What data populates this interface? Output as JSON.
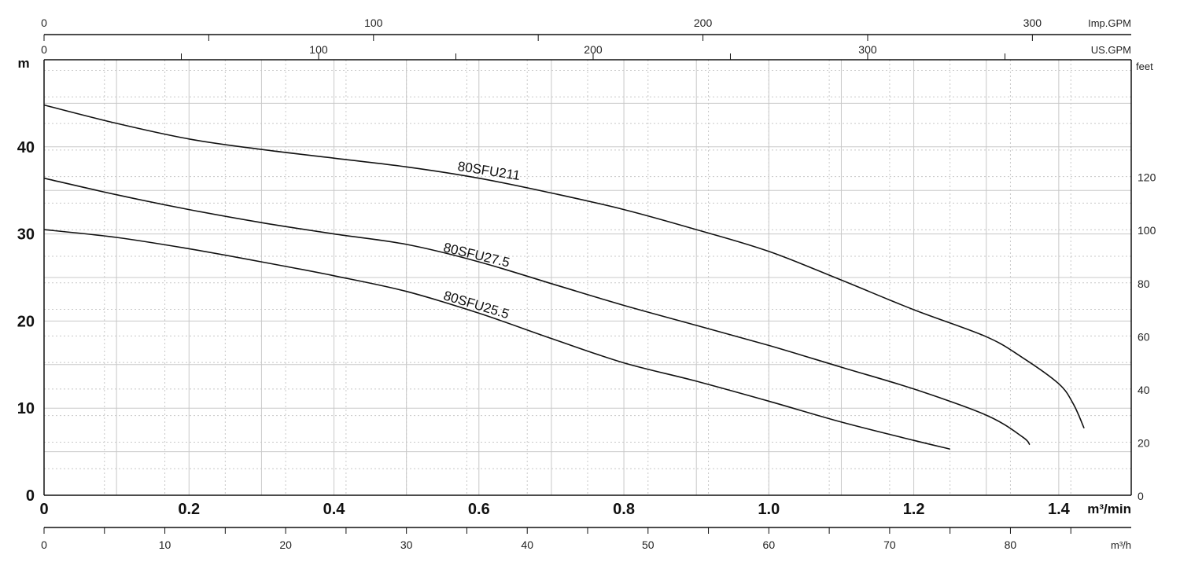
{
  "chart_data": {
    "type": "line",
    "title": "",
    "x_axes": {
      "bottom_primary": {
        "unit": "m³/min",
        "ticks": [
          "0",
          "0.2",
          "0.4",
          "0.6",
          "0.8",
          "1.0",
          "1.2",
          "1.4"
        ],
        "range": [
          0,
          1.5
        ]
      },
      "bottom_secondary": {
        "unit": "m³/h",
        "ticks": [
          "0",
          "10",
          "20",
          "30",
          "40",
          "50",
          "60",
          "70",
          "80"
        ],
        "range": [
          0,
          90
        ]
      },
      "top_imp": {
        "unit": "Imp.GPM",
        "ticks": [
          "0",
          "100",
          "200",
          "300"
        ],
        "range": [
          0,
          330
        ]
      },
      "top_us": {
        "unit": "US.GPM",
        "ticks": [
          "0",
          "100",
          "200",
          "300"
        ],
        "range": [
          0,
          396
        ]
      }
    },
    "y_axes": {
      "left": {
        "unit": "m",
        "ticks": [
          "0",
          "10",
          "20",
          "30",
          "40"
        ],
        "range": [
          0,
          50
        ]
      },
      "right": {
        "unit": "feet",
        "ticks": [
          "0",
          "20",
          "40",
          "60",
          "80",
          "100",
          "120"
        ],
        "range": [
          0,
          164
        ]
      }
    },
    "series": [
      {
        "name": "80SFU211",
        "x": [
          0,
          0.1,
          0.2,
          0.3,
          0.4,
          0.5,
          0.6,
          0.7,
          0.8,
          0.9,
          1.0,
          1.1,
          1.2,
          1.3,
          1.35,
          1.4,
          1.42,
          1.435
        ],
        "y": [
          44.8,
          42.7,
          40.9,
          39.7,
          38.7,
          37.7,
          36.4,
          34.7,
          32.8,
          30.5,
          28.0,
          24.7,
          21.3,
          18.2,
          15.8,
          12.8,
          10.5,
          7.7
        ]
      },
      {
        "name": "80SFU27.5",
        "x": [
          0,
          0.1,
          0.2,
          0.3,
          0.4,
          0.5,
          0.6,
          0.7,
          0.8,
          0.9,
          1.0,
          1.1,
          1.2,
          1.3,
          1.35,
          1.36
        ],
        "y": [
          36.4,
          34.5,
          32.8,
          31.3,
          30.0,
          28.8,
          26.8,
          24.3,
          21.8,
          19.5,
          17.2,
          14.7,
          12.2,
          9.2,
          6.7,
          5.8
        ]
      },
      {
        "name": "80SFU25.5",
        "x": [
          0,
          0.1,
          0.2,
          0.3,
          0.4,
          0.5,
          0.6,
          0.7,
          0.8,
          0.9,
          1.0,
          1.1,
          1.2,
          1.25
        ],
        "y": [
          30.5,
          29.6,
          28.3,
          26.8,
          25.2,
          23.4,
          20.9,
          18.0,
          15.2,
          13.1,
          10.8,
          8.4,
          6.3,
          5.3
        ]
      }
    ],
    "labels": [
      {
        "series": "80SFU211",
        "text": "80SFU211",
        "x": 0.57,
        "y": 37.3
      },
      {
        "series": "80SFU27.5",
        "text": "80SFU27.5",
        "x": 0.55,
        "y": 28.0
      },
      {
        "series": "80SFU25.5",
        "text": "80SFU25.5",
        "x": 0.55,
        "y": 22.5
      }
    ],
    "grid": true,
    "legend": "none"
  }
}
